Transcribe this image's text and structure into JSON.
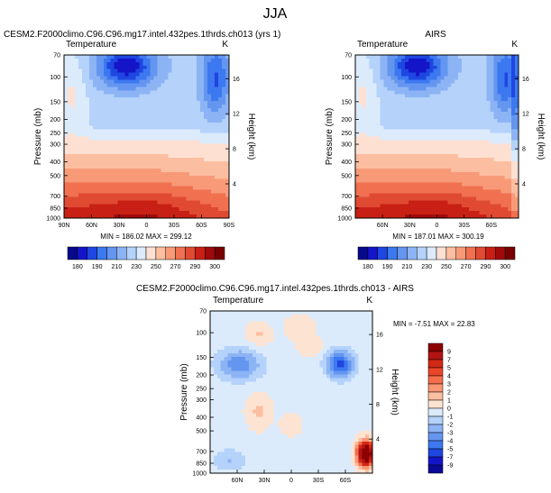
{
  "figure": {
    "title": "JJA"
  },
  "chart_data": [
    {
      "type": "heatmap",
      "title": "CESM2.F2000climo.C96.C96.mg17.intel.432pes.1thrds.ch013 (yrs 1)",
      "field_label": "Temperature",
      "unit_label": "K",
      "xlabel": "",
      "ylabel": "Pressure (mb)",
      "y2label": "Height (km)",
      "x_ticks": [
        "90N",
        "60N",
        "30N",
        "0",
        "30S",
        "60S",
        "90S"
      ],
      "y_ticks": [
        "70",
        "100",
        "150",
        "200",
        "250",
        "300",
        "400",
        "500",
        "700",
        "850",
        "1000"
      ],
      "y2_ticks": [
        "16",
        "12",
        "8",
        "4"
      ],
      "stats": "MIN = 186.02   MAX = 299.12",
      "colorbar_ticks": [
        "180",
        "190",
        "210",
        "230",
        "250",
        "270",
        "290",
        "300"
      ]
    },
    {
      "type": "heatmap",
      "title": "AIRS",
      "field_label": "Temperature",
      "unit_label": "K",
      "xlabel": "",
      "ylabel": "Pressure (mb)",
      "y2label": "Height (km)",
      "x_ticks": [
        "60N",
        "30N",
        "0",
        "30S",
        "60S"
      ],
      "y_ticks": [
        "70",
        "100",
        "150",
        "200",
        "250",
        "300",
        "400",
        "500",
        "700",
        "850",
        "1000"
      ],
      "y2_ticks": [
        "16",
        "12",
        "8",
        "4"
      ],
      "stats": "MIN = 187.01   MAX = 300.19",
      "colorbar_ticks": [
        "180",
        "190",
        "210",
        "230",
        "250",
        "270",
        "290",
        "300"
      ]
    },
    {
      "type": "heatmap",
      "title": "CESM2.F2000climo.C96.C96.mg17.intel.432pes.1thrds.ch013 - AIRS",
      "field_label": "Temperature",
      "unit_label": "K",
      "xlabel": "",
      "ylabel": "Pressure (mb)",
      "y2label": "Height (km)",
      "x_ticks": [
        "60N",
        "30N",
        "0",
        "30S",
        "60S"
      ],
      "y_ticks": [
        "70",
        "100",
        "150",
        "200",
        "250",
        "300",
        "400",
        "500",
        "700",
        "850",
        "1000"
      ],
      "y2_ticks": [
        "16",
        "12",
        "8",
        "4"
      ],
      "stats": "MIN = -7.51   MAX = 22.83",
      "colorbar_ticks": [
        "9",
        "7",
        "5",
        "4",
        "3",
        "2",
        "1",
        "0",
        "-1",
        "-2",
        "-3",
        "-4",
        "-5",
        "-7",
        "-9"
      ]
    }
  ],
  "colors": {
    "abs_scale": [
      "#08088a",
      "#1414c8",
      "#1e46e0",
      "#3c78f0",
      "#6496f0",
      "#8cb4f5",
      "#b4d2fa",
      "#dcebfc",
      "#fde0d2",
      "#fcbea0",
      "#f89a78",
      "#f07050",
      "#e04a32",
      "#c82014",
      "#a00a0a",
      "#780000"
    ],
    "diff_scale": [
      "#8c0000",
      "#b41414",
      "#d22814",
      "#eb4628",
      "#f56e4b",
      "#fa9673",
      "#fcbea0",
      "#fde3d2",
      "#dcebfc",
      "#b4d2fa",
      "#8cb4f5",
      "#6496f0",
      "#3c78f0",
      "#1e46e0",
      "#1414c8",
      "#0a0a96"
    ]
  }
}
